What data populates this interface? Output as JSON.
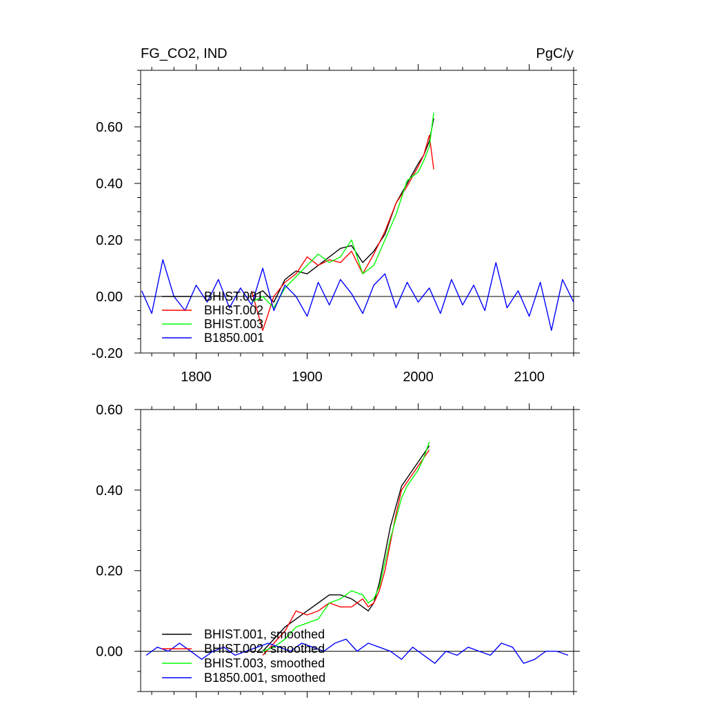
{
  "header": {
    "left_title": "FG_CO2, IND",
    "right_title": "PgC/y"
  },
  "chart_data": [
    {
      "type": "line",
      "title": "FG_CO2, IND",
      "units": "PgC/y",
      "xlim": [
        1750,
        2140
      ],
      "ylim": [
        -0.2,
        0.8
      ],
      "xticks": [
        1800,
        1900,
        2000,
        2100
      ],
      "xtick_labels": [
        "1800",
        "1900",
        "2000",
        "2100"
      ],
      "yticks": [
        -0.2,
        0.0,
        0.2,
        0.4,
        0.6
      ],
      "ytick_labels": [
        "-0.20",
        "0.00",
        "0.20",
        "0.40",
        "0.60"
      ],
      "legend_position": "bottom-left",
      "series": [
        {
          "name": "BHIST.001",
          "color": "#000000",
          "x": [
            1850,
            1860,
            1870,
            1880,
            1890,
            1900,
            1910,
            1920,
            1930,
            1940,
            1950,
            1960,
            1970,
            1980,
            1990,
            2000,
            2005,
            2010,
            2014
          ],
          "y": [
            0.0,
            0.02,
            -0.02,
            0.06,
            0.09,
            0.08,
            0.11,
            0.14,
            0.17,
            0.18,
            0.12,
            0.16,
            0.22,
            0.33,
            0.4,
            0.47,
            0.5,
            0.55,
            0.63
          ]
        },
        {
          "name": "BHIST.002",
          "color": "#ff0000",
          "x": [
            1850,
            1860,
            1870,
            1880,
            1890,
            1900,
            1910,
            1920,
            1930,
            1940,
            1950,
            1960,
            1970,
            1980,
            1990,
            2000,
            2005,
            2010,
            2014
          ],
          "y": [
            0.02,
            -0.12,
            0.0,
            0.05,
            0.08,
            0.14,
            0.11,
            0.13,
            0.12,
            0.16,
            0.08,
            0.15,
            0.23,
            0.33,
            0.39,
            0.46,
            0.5,
            0.57,
            0.45
          ]
        },
        {
          "name": "BHIST.003",
          "color": "#00ff00",
          "x": [
            1850,
            1860,
            1870,
            1880,
            1890,
            1900,
            1910,
            1920,
            1930,
            1940,
            1950,
            1960,
            1970,
            1980,
            1990,
            2000,
            2005,
            2010,
            2014
          ],
          "y": [
            -0.02,
            0.0,
            -0.04,
            0.03,
            0.07,
            0.11,
            0.15,
            0.12,
            0.14,
            0.2,
            0.08,
            0.11,
            0.2,
            0.29,
            0.41,
            0.44,
            0.48,
            0.53,
            0.65
          ]
        },
        {
          "name": "B1850.001",
          "color": "#0000ff",
          "x": [
            1751,
            1760,
            1770,
            1780,
            1790,
            1800,
            1810,
            1820,
            1830,
            1840,
            1850,
            1860,
            1870,
            1880,
            1890,
            1900,
            1910,
            1920,
            1930,
            1940,
            1950,
            1960,
            1970,
            1980,
            1990,
            2000,
            2010,
            2020,
            2030,
            2040,
            2050,
            2060,
            2070,
            2080,
            2090,
            2100,
            2110,
            2120,
            2130,
            2140
          ],
          "y": [
            0.02,
            -0.06,
            0.13,
            0.0,
            -0.05,
            0.04,
            -0.02,
            0.06,
            -0.04,
            0.03,
            -0.03,
            0.1,
            -0.05,
            0.04,
            0.0,
            -0.07,
            0.05,
            -0.03,
            0.06,
            0.01,
            -0.06,
            0.04,
            0.08,
            -0.04,
            0.05,
            -0.02,
            0.03,
            -0.06,
            0.06,
            -0.03,
            0.04,
            -0.05,
            0.12,
            -0.04,
            0.02,
            -0.07,
            0.05,
            -0.12,
            0.06,
            -0.02
          ]
        }
      ]
    },
    {
      "type": "line",
      "xlim": [
        1750,
        2140
      ],
      "ylim": [
        -0.1,
        0.6
      ],
      "xticks": [
        1800,
        1900,
        2000,
        2100
      ],
      "yticks": [
        0.0,
        0.2,
        0.4,
        0.6
      ],
      "ytick_labels": [
        "0.00",
        "0.20",
        "0.40",
        "0.60"
      ],
      "legend_position": "bottom-left",
      "series": [
        {
          "name": "BHIST.001, smoothed",
          "color": "#000000",
          "x": [
            1860,
            1870,
            1880,
            1890,
            1900,
            1910,
            1920,
            1930,
            1940,
            1950,
            1955,
            1960,
            1965,
            1970,
            1975,
            1980,
            1985,
            1990,
            1995,
            2000,
            2005,
            2010
          ],
          "y": [
            0.0,
            0.03,
            0.06,
            0.08,
            0.1,
            0.12,
            0.14,
            0.14,
            0.13,
            0.11,
            0.1,
            0.12,
            0.17,
            0.24,
            0.31,
            0.36,
            0.41,
            0.43,
            0.45,
            0.47,
            0.49,
            0.51
          ]
        },
        {
          "name": "BHIST.002, smoothed",
          "color": "#ff0000",
          "x": [
            1860,
            1870,
            1880,
            1890,
            1900,
            1910,
            1920,
            1930,
            1940,
            1950,
            1955,
            1960,
            1965,
            1970,
            1975,
            1980,
            1985,
            1990,
            1995,
            2000,
            2005,
            2010
          ],
          "y": [
            -0.01,
            0.02,
            0.05,
            0.1,
            0.09,
            0.1,
            0.12,
            0.11,
            0.11,
            0.13,
            0.11,
            0.12,
            0.15,
            0.2,
            0.27,
            0.34,
            0.4,
            0.42,
            0.44,
            0.46,
            0.48,
            0.5
          ]
        },
        {
          "name": "BHIST.003, smoothed",
          "color": "#00ff00",
          "x": [
            1860,
            1870,
            1880,
            1890,
            1900,
            1910,
            1920,
            1930,
            1940,
            1950,
            1955,
            1960,
            1965,
            1970,
            1975,
            1980,
            1985,
            1990,
            1995,
            2000,
            2005,
            2010
          ],
          "y": [
            0.0,
            0.01,
            0.03,
            0.06,
            0.07,
            0.08,
            0.12,
            0.13,
            0.15,
            0.14,
            0.12,
            0.13,
            0.16,
            0.22,
            0.28,
            0.33,
            0.38,
            0.41,
            0.43,
            0.45,
            0.48,
            0.52
          ]
        },
        {
          "name": "B1850.001, smoothed",
          "color": "#0000ff",
          "x": [
            1755,
            1765,
            1775,
            1785,
            1795,
            1805,
            1815,
            1825,
            1835,
            1845,
            1855,
            1865,
            1875,
            1885,
            1895,
            1905,
            1915,
            1925,
            1935,
            1945,
            1955,
            1965,
            1975,
            1985,
            1995,
            2005,
            2015,
            2025,
            2035,
            2045,
            2055,
            2065,
            2075,
            2085,
            2095,
            2105,
            2115,
            2125,
            2135
          ],
          "y": [
            -0.01,
            0.01,
            0.0,
            0.02,
            0.0,
            -0.02,
            0.0,
            0.01,
            -0.01,
            0.0,
            0.01,
            0.02,
            0.01,
            0.0,
            0.02,
            0.01,
            0.0,
            0.02,
            0.03,
            0.0,
            0.02,
            0.01,
            0.0,
            -0.02,
            0.01,
            -0.01,
            -0.03,
            0.0,
            -0.01,
            0.01,
            0.0,
            -0.01,
            0.02,
            0.01,
            -0.03,
            -0.02,
            0.0,
            0.0,
            -0.01
          ]
        }
      ]
    }
  ]
}
